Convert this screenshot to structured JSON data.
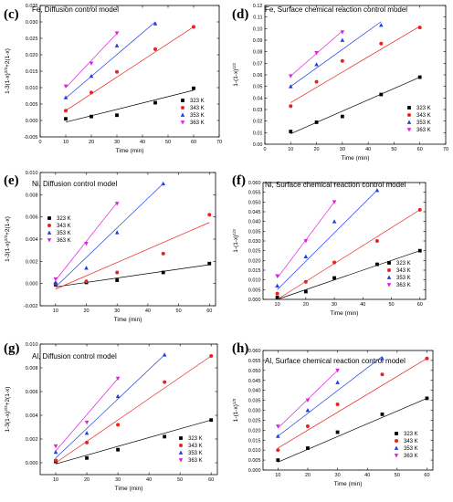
{
  "colors": {
    "323 K": "#000000",
    "343 K": "#e8231f",
    "353 K": "#1f3fe0",
    "363 K": "#e21ee2"
  },
  "markers": {
    "323 K": "square",
    "343 K": "circle",
    "353 K": "triangle-up",
    "363 K": "triangle-down"
  },
  "chart_data": [
    {
      "id": "c",
      "letter": "(c)",
      "type": "scatter",
      "title": "Fe, Diffusion control model",
      "xlabel": "Time (min)",
      "ylabel": "1-3(1-x)^{2/3}+2(1-x)",
      "xlim": [
        0,
        70
      ],
      "ylim": [
        -0.005,
        0.035
      ],
      "xticks": [
        0,
        10,
        20,
        30,
        40,
        50,
        60,
        70
      ],
      "yticks": [
        -0.005,
        0.0,
        0.005,
        0.01,
        0.015,
        0.02,
        0.025,
        0.03,
        0.035
      ],
      "xtick_labels": [
        "0",
        "10",
        "20",
        "30",
        "40",
        "50",
        "60",
        "70"
      ],
      "ytick_labels": [
        "-0.005",
        "0.000",
        "0.005",
        "0.010",
        "0.015",
        "0.020",
        "0.025",
        "0.030",
        "0.035"
      ],
      "legend_position": "bottom-right",
      "series": [
        {
          "name": "323 K",
          "x": [
            10,
            20,
            30,
            45,
            60
          ],
          "y": [
            0.0005,
            0.0012,
            0.0016,
            0.0054,
            0.0098
          ],
          "fit_x": [
            10,
            60
          ],
          "fit_y": [
            -0.0005,
            0.0092
          ]
        },
        {
          "name": "343 K",
          "x": [
            10,
            20,
            30,
            45,
            60
          ],
          "y": [
            0.003,
            0.0085,
            0.0148,
            0.0217,
            0.0285
          ],
          "fit_x": [
            10,
            60
          ],
          "fit_y": [
            0.003,
            0.0285
          ]
        },
        {
          "name": "353 K",
          "x": [
            10,
            20,
            30,
            45
          ],
          "y": [
            0.007,
            0.0135,
            0.0228,
            0.0295
          ],
          "fit_x": [
            10,
            45
          ],
          "fit_y": [
            0.0068,
            0.03
          ]
        },
        {
          "name": "363 K",
          "x": [
            10,
            20,
            30
          ],
          "y": [
            0.0104,
            0.0174,
            0.0266
          ],
          "fit_x": [
            10,
            30
          ],
          "fit_y": [
            0.01,
            0.0265
          ]
        }
      ]
    },
    {
      "id": "d",
      "letter": "(d)",
      "type": "scatter",
      "title": "Fe, Surface chemical reaction control model",
      "xlabel": "Time (min)",
      "ylabel": "1-(1-x)^{1/3}",
      "xlim": [
        0,
        70
      ],
      "ylim": [
        0.0,
        0.12
      ],
      "xticks": [
        0,
        10,
        20,
        30,
        40,
        50,
        60,
        70
      ],
      "yticks": [
        0.0,
        0.01,
        0.02,
        0.03,
        0.04,
        0.05,
        0.06,
        0.07,
        0.08,
        0.09,
        0.1,
        0.11,
        0.12
      ],
      "xtick_labels": [
        "0",
        "10",
        "20",
        "30",
        "40",
        "50",
        "60",
        "70"
      ],
      "ytick_labels": [
        "0.00",
        "0.01",
        "0.02",
        "0.03",
        "0.04",
        "0.05",
        "0.06",
        "0.07",
        "0.08",
        "0.09",
        "0.10",
        "0.11",
        "0.12"
      ],
      "legend_position": "bottom-right",
      "series": [
        {
          "name": "323 K",
          "x": [
            10,
            20,
            30,
            45,
            60
          ],
          "y": [
            0.011,
            0.019,
            0.024,
            0.043,
            0.058
          ],
          "fit_x": [
            10,
            60
          ],
          "fit_y": [
            0.009,
            0.058
          ]
        },
        {
          "name": "343 K",
          "x": [
            10,
            20,
            30,
            45,
            60
          ],
          "y": [
            0.033,
            0.054,
            0.072,
            0.087,
            0.101
          ],
          "fit_x": [
            10,
            60
          ],
          "fit_y": [
            0.036,
            0.102
          ]
        },
        {
          "name": "353 K",
          "x": [
            10,
            20,
            30,
            45
          ],
          "y": [
            0.05,
            0.069,
            0.09,
            0.103
          ],
          "fit_x": [
            10,
            45
          ],
          "fit_y": [
            0.05,
            0.106
          ]
        },
        {
          "name": "363 K",
          "x": [
            10,
            20,
            30
          ],
          "y": [
            0.059,
            0.079,
            0.097
          ],
          "fit_x": [
            10,
            30
          ],
          "fit_y": [
            0.059,
            0.098
          ]
        }
      ]
    },
    {
      "id": "e",
      "letter": "(e)",
      "type": "scatter",
      "title": "Ni, Diffusion control model",
      "xlabel": "Time (min)",
      "ylabel": "1-3(1-x)^{2/3}+2(1-x)",
      "xlim": [
        5,
        62
      ],
      "ylim": [
        -0.002,
        0.01
      ],
      "xticks": [
        10,
        20,
        30,
        40,
        50,
        60
      ],
      "yticks": [
        -0.002,
        0.0,
        0.002,
        0.004,
        0.006,
        0.008,
        0.01
      ],
      "xtick_labels": [
        "10",
        "20",
        "30",
        "40",
        "50",
        "60"
      ],
      "ytick_labels": [
        "-0.002",
        "0.000",
        "0.002",
        "0.004",
        "0.006",
        "0.008",
        "0.010"
      ],
      "legend_position": "top-left",
      "series": [
        {
          "name": "323 K",
          "x": [
            10,
            20,
            30,
            45,
            60
          ],
          "y": [
            -0.0001,
            0.0001,
            0.0003,
            0.001,
            0.0018
          ],
          "fit_x": [
            10,
            60
          ],
          "fit_y": [
            -0.0003,
            0.0017
          ]
        },
        {
          "name": "343 K",
          "x": [
            10,
            20,
            30,
            45,
            60
          ],
          "y": [
            0.0,
            0.0002,
            0.001,
            0.0027,
            0.0062
          ],
          "fit_x": [
            10,
            60
          ],
          "fit_y": [
            -0.0005,
            0.0055
          ]
        },
        {
          "name": "353 K",
          "x": [
            10,
            20,
            30,
            45
          ],
          "y": [
            0.0001,
            0.0014,
            0.0046,
            0.009
          ],
          "fit_x": [
            10,
            45
          ],
          "fit_y": [
            -0.0003,
            0.009
          ]
        },
        {
          "name": "363 K",
          "x": [
            10,
            20,
            30
          ],
          "y": [
            0.0004,
            0.0036,
            0.0072
          ],
          "fit_x": [
            10,
            30
          ],
          "fit_y": [
            0.0003,
            0.0073
          ]
        }
      ]
    },
    {
      "id": "f",
      "letter": "(f)",
      "type": "scatter",
      "title": "Ni, Surface chemical reaction control model",
      "xlabel": "Time (min)",
      "ylabel": "1-(1-x)^{1/3}",
      "xlim": [
        5,
        62
      ],
      "ylim": [
        0.0,
        0.06
      ],
      "xticks": [
        10,
        20,
        30,
        40,
        50,
        60
      ],
      "yticks": [
        0.0,
        0.005,
        0.01,
        0.015,
        0.02,
        0.025,
        0.03,
        0.035,
        0.04,
        0.045,
        0.05,
        0.055,
        0.06
      ],
      "xtick_labels": [
        "10",
        "20",
        "30",
        "40",
        "50",
        "60"
      ],
      "ytick_labels": [
        "0.000",
        "0.005",
        "0.010",
        "0.015",
        "0.020",
        "0.025",
        "0.030",
        "0.035",
        "0.040",
        "0.045",
        "0.050",
        "0.055",
        "0.060"
      ],
      "legend_position": "bottom-right",
      "series": [
        {
          "name": "323 K",
          "x": [
            10,
            20,
            30,
            45,
            60
          ],
          "y": [
            0.001,
            0.004,
            0.011,
            0.018,
            0.025
          ],
          "fit_x": [
            10,
            60
          ],
          "fit_y": [
            0.0,
            0.025
          ]
        },
        {
          "name": "343 K",
          "x": [
            10,
            20,
            30,
            45,
            60
          ],
          "y": [
            0.003,
            0.009,
            0.019,
            0.03,
            0.046
          ],
          "fit_x": [
            10,
            60
          ],
          "fit_y": [
            0.0,
            0.046
          ]
        },
        {
          "name": "353 K",
          "x": [
            10,
            20,
            30,
            45
          ],
          "y": [
            0.007,
            0.022,
            0.04,
            0.056
          ],
          "fit_x": [
            10,
            45
          ],
          "fit_y": [
            0.005,
            0.056
          ]
        },
        {
          "name": "363 K",
          "x": [
            10,
            20,
            30
          ],
          "y": [
            0.012,
            0.03,
            0.05
          ],
          "fit_x": [
            10,
            30
          ],
          "fit_y": [
            0.011,
            0.05
          ]
        }
      ]
    },
    {
      "id": "g",
      "letter": "(g)",
      "type": "scatter",
      "title": "Al, Diffusion control model",
      "xlabel": "Time (min)",
      "ylabel": "1-3(1-x)^{2/3}+2(1-x)",
      "xlim": [
        5,
        62
      ],
      "ylim": [
        -0.001,
        0.01
      ],
      "xticks": [
        10,
        20,
        30,
        40,
        50,
        60
      ],
      "yticks": [
        0.0,
        0.002,
        0.004,
        0.006,
        0.008,
        0.01
      ],
      "xtick_labels": [
        "10",
        "20",
        "30",
        "40",
        "50",
        "60"
      ],
      "ytick_labels": [
        "0.000",
        "0.002",
        "0.004",
        "0.006",
        "0.008",
        "0.010"
      ],
      "legend_position": "bottom-right",
      "series": [
        {
          "name": "323 K",
          "x": [
            10,
            20,
            30,
            45,
            60
          ],
          "y": [
            0.0001,
            0.0004,
            0.0011,
            0.0022,
            0.0036
          ],
          "fit_x": [
            10,
            60
          ],
          "fit_y": [
            -0.0001,
            0.0036
          ]
        },
        {
          "name": "343 K",
          "x": [
            10,
            20,
            30,
            45,
            60
          ],
          "y": [
            0.0002,
            0.0017,
            0.0032,
            0.0068,
            0.009
          ],
          "fit_x": [
            10,
            60
          ],
          "fit_y": [
            0.0,
            0.009
          ]
        },
        {
          "name": "353 K",
          "x": [
            10,
            20,
            30,
            45
          ],
          "y": [
            0.0009,
            0.0025,
            0.0056,
            0.0091
          ],
          "fit_x": [
            10,
            45
          ],
          "fit_y": [
            0.0004,
            0.0091
          ]
        },
        {
          "name": "363 K",
          "x": [
            10,
            20,
            30
          ],
          "y": [
            0.0014,
            0.0034,
            0.0071
          ],
          "fit_x": [
            10,
            30
          ],
          "fit_y": [
            0.001,
            0.0071
          ]
        }
      ]
    },
    {
      "id": "h",
      "letter": "(h)",
      "type": "scatter",
      "title": "Al, Surface chemical reaction control model",
      "xlabel": "Time (min)",
      "ylabel": "1-(1-x)^{1/3}",
      "xlim": [
        5,
        62
      ],
      "ylim": [
        0.0,
        0.06
      ],
      "xticks": [
        10,
        20,
        30,
        40,
        50,
        60
      ],
      "yticks": [
        0.0,
        0.005,
        0.01,
        0.015,
        0.02,
        0.025,
        0.03,
        0.035,
        0.04,
        0.045,
        0.05,
        0.055,
        0.06
      ],
      "xtick_labels": [
        "10",
        "20",
        "30",
        "40",
        "50",
        "60"
      ],
      "ytick_labels": [
        "0.000",
        "0.005",
        "0.010",
        "0.015",
        "0.020",
        "0.025",
        "0.030",
        "0.035",
        "0.040",
        "0.045",
        "0.050",
        "0.055",
        "0.060"
      ],
      "legend_position": "bottom-right",
      "series": [
        {
          "name": "323 K",
          "x": [
            10,
            20,
            30,
            45,
            60
          ],
          "y": [
            0.005,
            0.011,
            0.019,
            0.028,
            0.036
          ],
          "fit_x": [
            10,
            60
          ],
          "fit_y": [
            0.004,
            0.036
          ]
        },
        {
          "name": "343 K",
          "x": [
            10,
            20,
            30,
            45,
            60
          ],
          "y": [
            0.01,
            0.022,
            0.033,
            0.048,
            0.056
          ],
          "fit_x": [
            10,
            60
          ],
          "fit_y": [
            0.011,
            0.056
          ]
        },
        {
          "name": "353 K",
          "x": [
            10,
            20,
            30,
            45
          ],
          "y": [
            0.017,
            0.03,
            0.044,
            0.056
          ],
          "fit_x": [
            10,
            45
          ],
          "fit_y": [
            0.017,
            0.057
          ]
        },
        {
          "name": "363 K",
          "x": [
            10,
            20,
            30
          ],
          "y": [
            0.022,
            0.035,
            0.05
          ],
          "fit_x": [
            10,
            30
          ],
          "fit_y": [
            0.021,
            0.05
          ]
        }
      ]
    }
  ]
}
